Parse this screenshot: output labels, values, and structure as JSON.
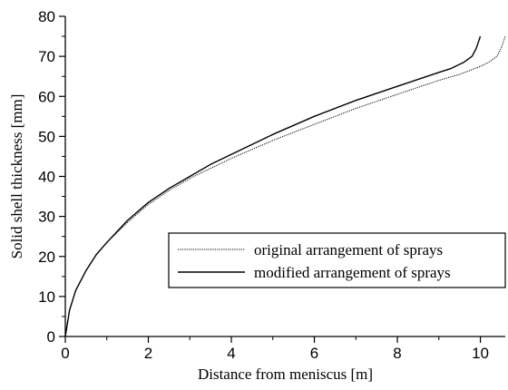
{
  "chart_data": {
    "type": "line",
    "title": "",
    "xlabel": "Distance from meniscus [m]",
    "ylabel": "Solid shell thickness [mm]",
    "xlim": [
      0,
      10.6
    ],
    "ylim": [
      0,
      80
    ],
    "xticks": [
      0,
      2,
      4,
      6,
      8,
      10
    ],
    "yticks": [
      0,
      10,
      20,
      30,
      40,
      50,
      60,
      70,
      80
    ],
    "xtick_labels": [
      "0",
      "2",
      "4",
      "6",
      "8",
      "10"
    ],
    "ytick_labels": [
      "0",
      "10",
      "20",
      "30",
      "40",
      "50",
      "60",
      "70",
      "80"
    ],
    "grid": false,
    "legend_position": "lower-right",
    "series": [
      {
        "name": "original arrangement of sprays",
        "style": "dotted",
        "color": "#000000",
        "x": [
          0,
          0.1,
          0.25,
          0.5,
          0.75,
          1.0,
          1.5,
          2.0,
          2.5,
          3.0,
          3.5,
          4.0,
          5.0,
          6.0,
          7.0,
          8.0,
          9.0,
          9.5,
          10.0,
          10.2,
          10.4,
          10.5,
          10.6
        ],
        "y": [
          0,
          6.5,
          11.5,
          16.5,
          20.5,
          23.5,
          28.5,
          33.0,
          36.5,
          39.5,
          42.0,
          44.5,
          49.0,
          53.0,
          57.0,
          60.5,
          64.0,
          65.5,
          67.5,
          68.5,
          70.0,
          72.0,
          75.0
        ]
      },
      {
        "name": "modified arrangement of sprays",
        "style": "solid",
        "color": "#000000",
        "x": [
          0,
          0.1,
          0.25,
          0.5,
          0.75,
          1.0,
          1.5,
          2.0,
          2.5,
          3.0,
          3.5,
          4.0,
          5.0,
          6.0,
          7.0,
          8.0,
          9.0,
          9.3,
          9.6,
          9.8,
          9.9,
          10.0
        ],
        "y": [
          0,
          6.5,
          11.5,
          16.5,
          20.5,
          23.5,
          29.0,
          33.5,
          37.0,
          40.0,
          43.0,
          45.5,
          50.5,
          55.0,
          59.0,
          62.5,
          66.0,
          67.0,
          68.5,
          70.0,
          72.0,
          75.0
        ]
      }
    ]
  }
}
